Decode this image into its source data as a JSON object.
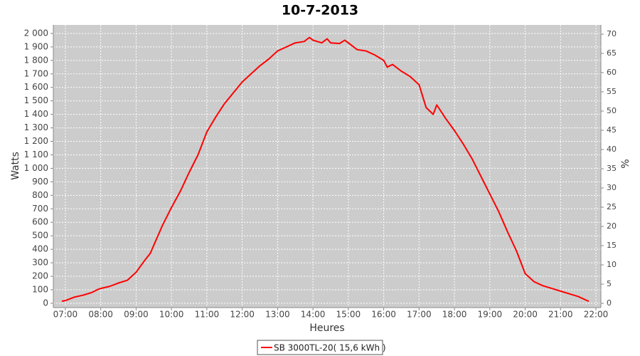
{
  "chart_data": {
    "type": "line",
    "title": "10-7-2013",
    "x_label": "Heures",
    "y_label": "Watts",
    "y2_label": "%",
    "x": [
      6.9,
      7.0,
      7.25,
      7.5,
      7.75,
      7.9,
      8.0,
      8.25,
      8.5,
      8.75,
      9.0,
      9.25,
      9.4,
      9.5,
      9.75,
      10.0,
      10.25,
      10.5,
      10.75,
      11.0,
      11.25,
      11.5,
      11.75,
      12.0,
      12.25,
      12.5,
      12.75,
      13.0,
      13.25,
      13.5,
      13.75,
      13.9,
      14.0,
      14.25,
      14.4,
      14.5,
      14.75,
      14.9,
      15.0,
      15.25,
      15.5,
      15.75,
      16.0,
      16.1,
      16.25,
      16.5,
      16.75,
      17.0,
      17.2,
      17.4,
      17.5,
      17.75,
      18.0,
      18.25,
      18.5,
      18.75,
      19.0,
      19.25,
      19.5,
      19.75,
      20.0,
      20.25,
      20.5,
      20.75,
      21.0,
      21.25,
      21.5,
      21.75,
      21.8
    ],
    "series": [
      {
        "name": "SB 3000TL-20( 15,6 kWh )",
        "color": "#ff0000",
        "values": [
          15,
          20,
          45,
          60,
          80,
          100,
          110,
          125,
          150,
          170,
          230,
          320,
          370,
          430,
          580,
          710,
          830,
          970,
          1100,
          1270,
          1380,
          1480,
          1560,
          1640,
          1700,
          1760,
          1810,
          1870,
          1900,
          1930,
          1940,
          1970,
          1950,
          1930,
          1960,
          1930,
          1925,
          1950,
          1930,
          1880,
          1870,
          1840,
          1800,
          1750,
          1770,
          1720,
          1680,
          1620,
          1450,
          1400,
          1470,
          1370,
          1280,
          1180,
          1070,
          940,
          810,
          680,
          530,
          390,
          220,
          160,
          130,
          110,
          90,
          70,
          50,
          20,
          15
        ]
      }
    ],
    "xlim": [
      6.66,
      22.14
    ],
    "xticks": [
      {
        "value": 7,
        "label": "07:00"
      },
      {
        "value": 8,
        "label": "08:00"
      },
      {
        "value": 9,
        "label": "09:00"
      },
      {
        "value": 10,
        "label": "10:00"
      },
      {
        "value": 11,
        "label": "11:00"
      },
      {
        "value": 12,
        "label": "12:00"
      },
      {
        "value": 13,
        "label": "13:00"
      },
      {
        "value": 14,
        "label": "14:00"
      },
      {
        "value": 15,
        "label": "15:00"
      },
      {
        "value": 16,
        "label": "16:00"
      },
      {
        "value": 17,
        "label": "17:00"
      },
      {
        "value": 18,
        "label": "18:00"
      },
      {
        "value": 19,
        "label": "19:00"
      },
      {
        "value": 20,
        "label": "20:00"
      },
      {
        "value": 21,
        "label": "21:00"
      },
      {
        "value": 22,
        "label": "22:00"
      }
    ],
    "ylim": [
      -32,
      2063
    ],
    "yticks": [
      0,
      100,
      200,
      300,
      400,
      500,
      600,
      700,
      800,
      900,
      {
        "value": 1000,
        "label": "1 000"
      },
      {
        "value": 1100,
        "label": "1 100"
      },
      {
        "value": 1200,
        "label": "1 200"
      },
      {
        "value": 1300,
        "label": "1 300"
      },
      {
        "value": 1400,
        "label": "1 400"
      },
      {
        "value": 1500,
        "label": "1 500"
      },
      {
        "value": 1600,
        "label": "1 600"
      },
      {
        "value": 1700,
        "label": "1 700"
      },
      {
        "value": 1800,
        "label": "1 800"
      },
      {
        "value": 1900,
        "label": "1 900"
      },
      {
        "value": 2000,
        "label": "2 000"
      }
    ],
    "y2lim": [
      -1.1,
      72.4
    ],
    "y2ticks": [
      0,
      5,
      10,
      15,
      20,
      25,
      30,
      35,
      40,
      45,
      50,
      55,
      60,
      65,
      70
    ],
    "grid": true,
    "legend": "bottom"
  }
}
